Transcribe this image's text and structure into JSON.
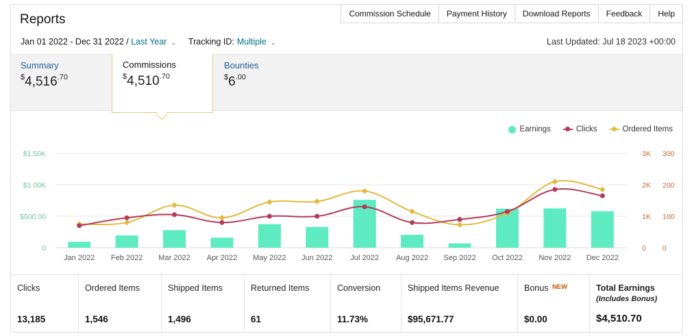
{
  "page_title": "Reports",
  "top_tabs": [
    "Commission Schedule",
    "Payment History",
    "Download Reports",
    "Feedback",
    "Help"
  ],
  "filters": {
    "date_range": "Jan 01 2022 - Dec 31 2022",
    "separator": " / ",
    "period": "Last Year",
    "tracking_label": "Tracking ID:",
    "tracking_value": "Multiple"
  },
  "last_updated": "Last Updated: Jul 18 2023 +00:00",
  "summary_tabs": [
    {
      "label": "Summary",
      "currency": "$",
      "whole": "4,516",
      "cents": "70"
    },
    {
      "label": "Commissions",
      "currency": "$",
      "whole": "4,510",
      "cents": "70",
      "active": true
    },
    {
      "label": "Bounties",
      "currency": "$",
      "whole": "6",
      "cents": "00"
    }
  ],
  "legend": [
    "Earnings",
    "Clicks",
    "Ordered Items"
  ],
  "colors": {
    "earnings": "#5eebc1",
    "clicks": "#b33a5a",
    "ordered": "#e2b93b",
    "left_axis": "#6cc29a",
    "right_axis": "#c46a3a"
  },
  "chart_data": {
    "type": "bar",
    "categories": [
      "Jan 2022",
      "Feb 2022",
      "Mar 2022",
      "Apr 2022",
      "May 2022",
      "Jun 2022",
      "Jul 2022",
      "Aug 2022",
      "Sep 2022",
      "Oct 2022",
      "Nov 2022",
      "Dec 2022"
    ],
    "series": [
      {
        "name": "Earnings",
        "type": "bar",
        "axis": "left",
        "values": [
          95,
          195,
          280,
          160,
          375,
          330,
          760,
          205,
          70,
          620,
          625,
          580
        ]
      },
      {
        "name": "Clicks",
        "type": "line",
        "axis": "right1",
        "values": [
          700,
          950,
          1050,
          800,
          1000,
          1000,
          1300,
          800,
          900,
          1150,
          1850,
          1650
        ]
      },
      {
        "name": "Ordered Items",
        "type": "line",
        "axis": "right2",
        "values": [
          75,
          80,
          135,
          95,
          145,
          147,
          180,
          115,
          73,
          110,
          210,
          185
        ]
      }
    ],
    "left_axis": {
      "ticks": [
        "0",
        "$500.00",
        "$1.00K",
        "$1.50K"
      ],
      "range": [
        0,
        1500
      ]
    },
    "right_axis_1": {
      "ticks": [
        "0",
        "1K",
        "2K",
        "3K"
      ],
      "range": [
        0,
        3000
      ]
    },
    "right_axis_2": {
      "ticks": [
        "0",
        "100",
        "200",
        "300"
      ],
      "range": [
        0,
        300
      ]
    },
    "legend_position": "top-right",
    "grid": true
  },
  "metrics": [
    {
      "label": "Clicks",
      "value": "13,185"
    },
    {
      "label": "Ordered Items",
      "value": "1,546"
    },
    {
      "label": "Shipped Items",
      "value": "1,496"
    },
    {
      "label": "Returned Items",
      "value": "61"
    },
    {
      "label": "Conversion",
      "value": "11.73%"
    },
    {
      "label": "Shipped Items Revenue",
      "value": "$95,671.77"
    },
    {
      "label": "Bonus",
      "badge": "NEW",
      "value": "$0.00"
    },
    {
      "label": "Total Earnings",
      "sublabel": "(Includes Bonus)",
      "value": "$4,510.70"
    }
  ]
}
